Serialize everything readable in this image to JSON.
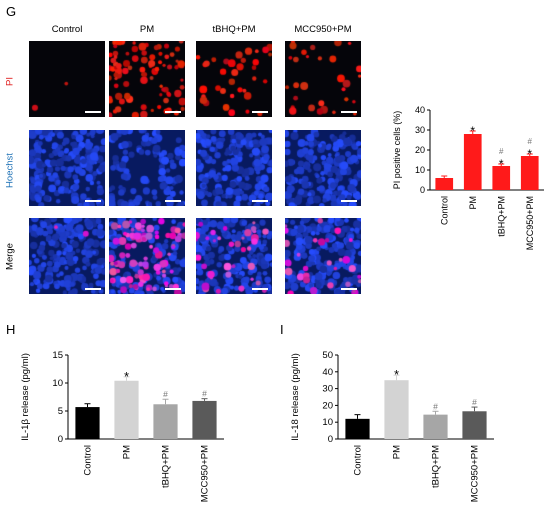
{
  "panels": {
    "g": "G",
    "h": "H",
    "i": "I"
  },
  "micrograph_grid": {
    "columns": [
      "Control",
      "PM",
      "tBHQ+PM",
      "MCC950+PM"
    ],
    "rows": [
      {
        "label": "PI",
        "label_color": "#e02020"
      },
      {
        "label": "Hoechst",
        "label_color": "#1a6fb5"
      },
      {
        "label": "Merge",
        "label_color": "#000000"
      }
    ]
  },
  "chart_data": [
    {
      "id": "g",
      "type": "bar",
      "categories": [
        "Control",
        "PM",
        "tBHQ+PM",
        "MCC950+PM"
      ],
      "values": [
        6,
        28,
        12,
        17
      ],
      "errors": [
        1,
        1.5,
        1,
        1
      ],
      "color": "#ff1a1a",
      "ylabel": "PI positive cells (%)",
      "ylim": [
        0,
        40
      ],
      "yticks": [
        "0",
        "10",
        "20",
        "30",
        "40"
      ],
      "annotations": [
        [],
        [
          "*"
        ],
        [
          "*",
          "#"
        ],
        [
          "*",
          "#"
        ]
      ]
    },
    {
      "id": "h",
      "type": "bar",
      "categories": [
        "Control",
        "PM",
        "tBHQ+PM",
        "MCC950+PM"
      ],
      "values": [
        5.7,
        10.4,
        6.2,
        6.8
      ],
      "errors": [
        0.6,
        0.7,
        0.9,
        0.4
      ],
      "colors": [
        "#000000",
        "#d3d3d3",
        "#a6a6a6",
        "#5a5a5a"
      ],
      "ylabel": "IL-1β release (pg/ml)",
      "ylim": [
        0,
        15
      ],
      "yticks": [
        "0",
        "5",
        "10",
        "15"
      ],
      "annotations": [
        [],
        [
          "*"
        ],
        [
          "#"
        ],
        [
          "#"
        ]
      ]
    },
    {
      "id": "i",
      "type": "bar",
      "categories": [
        "Control",
        "PM",
        "tBHQ+PM",
        "MCC950+PM"
      ],
      "values": [
        12,
        35,
        14.5,
        16.5
      ],
      "errors": [
        2.5,
        3,
        2,
        2.5
      ],
      "colors": [
        "#000000",
        "#d3d3d3",
        "#a6a6a6",
        "#5a5a5a"
      ],
      "ylabel": "IL-18 release (pg/ml)",
      "ylim": [
        0,
        50
      ],
      "yticks": [
        "0",
        "10",
        "20",
        "30",
        "40",
        "50"
      ],
      "annotations": [
        [],
        [
          "*"
        ],
        [
          "#"
        ],
        [
          "#"
        ]
      ]
    }
  ]
}
